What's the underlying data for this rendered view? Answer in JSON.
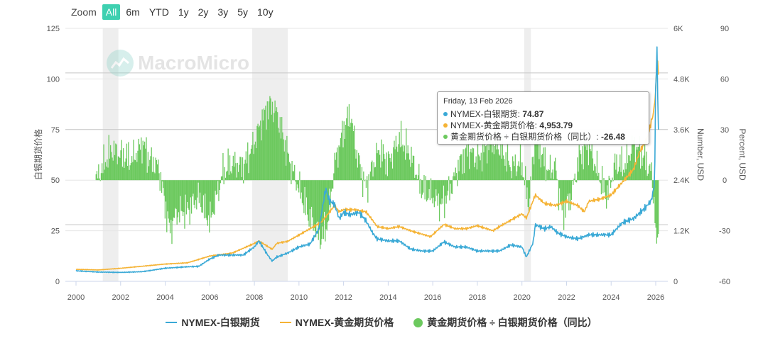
{
  "zoom": {
    "label": "Zoom",
    "buttons": [
      "All",
      "6m",
      "YTD",
      "1y",
      "2y",
      "3y",
      "5y",
      "10y"
    ],
    "active": "All"
  },
  "watermark": "MacroMicro",
  "tooltip": {
    "date": "Friday, 13 Feb 2026",
    "rows": [
      {
        "label": "NYMEX-白银期货: ",
        "value": "74.87",
        "color": "#3aa9d6"
      },
      {
        "label": "NYMEX-黄金期货价格: ",
        "value": "4,953.79",
        "color": "#f5b335"
      },
      {
        "label": "黄金期货价格 ÷ 白银期货价格（同比）: ",
        "value": "-26.48",
        "color": "#6cc95e"
      }
    ]
  },
  "legend": [
    {
      "label": "NYMEX-白银期货",
      "color": "#3aa9d6",
      "kind": "line"
    },
    {
      "label": "NYMEX-黄金期货价格",
      "color": "#f5b335",
      "kind": "line"
    },
    {
      "label": "黄金期货价格 ÷ 白银期货价格（同比）",
      "color": "#6cc95e",
      "kind": "area"
    }
  ],
  "chart_data": {
    "type": "line",
    "x_range": [
      2000,
      2026.3
    ],
    "x_ticks": [
      "2000",
      "2002",
      "2004",
      "2006",
      "2008",
      "2010",
      "2012",
      "2014",
      "2016",
      "2018",
      "2020",
      "2022",
      "2024",
      "2026"
    ],
    "axes": {
      "left": {
        "label": "白银期货价格",
        "min": 0,
        "max": 125,
        "ticks": [
          "0",
          "25",
          "50",
          "75",
          "100",
          "125"
        ]
      },
      "right1": {
        "label": "Number, USD",
        "min": 0,
        "max": 6000,
        "ticks": [
          "0",
          "1.2K",
          "2.4K",
          "3.6K",
          "4.8K",
          "6K"
        ]
      },
      "right2": {
        "label": "Percent, USD",
        "min": -60,
        "max": 90,
        "ticks": [
          "-60",
          "-30",
          "0",
          "30",
          "60",
          "90"
        ]
      }
    },
    "recession_bands": [
      [
        2001.2,
        2001.9
      ],
      [
        2007.9,
        2009.5
      ],
      [
        2020.1,
        2020.4
      ]
    ],
    "reference_lines_left": [
      103,
      75,
      28
    ],
    "series": [
      {
        "name": "NYMEX-白银期货",
        "axis": "left",
        "color": "#3aa9d6",
        "x": [
          2000,
          2001,
          2002,
          2003,
          2004,
          2005,
          2005.5,
          2006,
          2006.4,
          2007,
          2007.5,
          2008,
          2008.2,
          2008.6,
          2008.8,
          2009,
          2009.5,
          2010,
          2010.5,
          2010.9,
          2011,
          2011.2,
          2011.35,
          2011.6,
          2011.8,
          2012,
          2012.3,
          2012.7,
          2013,
          2013.3,
          2013.5,
          2014,
          2014.5,
          2015,
          2015.5,
          2016,
          2016.5,
          2017,
          2017.5,
          2018,
          2018.5,
          2019,
          2019.5,
          2020,
          2020.2,
          2020.5,
          2020.6,
          2021,
          2021.3,
          2021.6,
          2022,
          2022.5,
          2023,
          2023.5,
          2024,
          2024.5,
          2025,
          2025.5,
          2025.8,
          2025.95,
          2026.0,
          2026.05,
          2026.12
        ],
        "y": [
          5.2,
          4.6,
          4.4,
          4.8,
          6.5,
          7.2,
          7.4,
          11,
          13,
          13,
          13,
          17,
          20,
          13,
          10,
          12,
          14,
          17,
          18.5,
          26,
          33,
          46,
          40,
          38,
          31,
          34,
          33,
          34,
          30,
          24,
          21,
          20,
          20,
          16,
          15,
          15,
          19.5,
          17,
          17,
          15,
          15,
          15,
          18,
          17,
          12,
          19,
          28,
          26,
          27,
          24,
          22,
          21,
          23,
          23,
          23,
          29,
          31,
          36,
          40,
          48,
          100,
          115,
          74.87
        ]
      },
      {
        "name": "NYMEX-黄金期货价格",
        "axis": "right1",
        "color": "#f5b335",
        "x": [
          2000,
          2001,
          2002,
          2003,
          2004,
          2005,
          2006,
          2007,
          2008,
          2008.2,
          2008.8,
          2009,
          2009.5,
          2010,
          2010.5,
          2011,
          2011.6,
          2011.8,
          2012,
          2012.5,
          2013,
          2013.3,
          2013.5,
          2014,
          2014.5,
          2015,
          2015.9,
          2016.5,
          2017,
          2017.5,
          2018,
          2018.7,
          2019,
          2019.5,
          2020,
          2020.2,
          2020.6,
          2021,
          2021.5,
          2022,
          2022.5,
          2022.8,
          2023,
          2023.5,
          2024,
          2024.5,
          2025,
          2025.3,
          2025.6,
          2025.9,
          2026.0,
          2026.05,
          2026.12
        ],
        "y": [
          285,
          270,
          310,
          360,
          410,
          440,
          600,
          670,
          900,
          960,
          760,
          900,
          950,
          1100,
          1250,
          1400,
          1800,
          1650,
          1700,
          1700,
          1650,
          1450,
          1300,
          1250,
          1300,
          1200,
          1060,
          1350,
          1250,
          1250,
          1320,
          1200,
          1300,
          1450,
          1600,
          1500,
          2050,
          1850,
          1800,
          1900,
          1800,
          1650,
          1900,
          1950,
          2050,
          2350,
          2650,
          3100,
          3350,
          4000,
          4500,
          5350,
          4953.79
        ]
      },
      {
        "name": "黄金期货价格 ÷ 白银期货价格（同比）",
        "axis": "right2",
        "color": "#6cc95e",
        "kind": "area",
        "x": [
          2000.9,
          2001.2,
          2001.6,
          2002,
          2002.5,
          2003.0,
          2003.3,
          2003.7,
          2004.0,
          2004.2,
          2004.5,
          2005.0,
          2005.5,
          2006.0,
          2006.3,
          2006.6,
          2007.0,
          2007.5,
          2008.0,
          2008.3,
          2008.7,
          2009.0,
          2009.3,
          2009.6,
          2010.0,
          2010.4,
          2010.8,
          2011.0,
          2011.3,
          2011.6,
          2012.0,
          2012.3,
          2012.6,
          2013.0,
          2013.3,
          2013.6,
          2014.0,
          2014.5,
          2015.0,
          2015.5,
          2016.0,
          2016.4,
          2016.8,
          2017.2,
          2017.6,
          2018.0,
          2018.5,
          2019.0,
          2019.5,
          2020.0,
          2020.3,
          2020.6,
          2020.9,
          2021.2,
          2021.5,
          2021.8,
          2022.2,
          2022.6,
          2023.0,
          2023.4,
          2023.8,
          2024.2,
          2024.6,
          2025.0,
          2025.4,
          2025.8,
          2025.95,
          2026.05,
          2026.12
        ],
        "y": [
          0,
          8,
          18,
          15,
          12,
          22,
          12,
          8,
          -15,
          -30,
          -20,
          -18,
          -10,
          -25,
          -10,
          5,
          10,
          8,
          22,
          35,
          45,
          40,
          25,
          10,
          -5,
          -20,
          -30,
          -35,
          -25,
          10,
          30,
          40,
          15,
          -5,
          8,
          18,
          10,
          25,
          15,
          -5,
          -10,
          -15,
          -5,
          10,
          18,
          12,
          22,
          20,
          8,
          10,
          -15,
          25,
          15,
          5,
          8,
          -20,
          -10,
          15,
          20,
          5,
          -10,
          10,
          8,
          22,
          15,
          5,
          -15,
          -45,
          -26.48
        ]
      }
    ]
  }
}
